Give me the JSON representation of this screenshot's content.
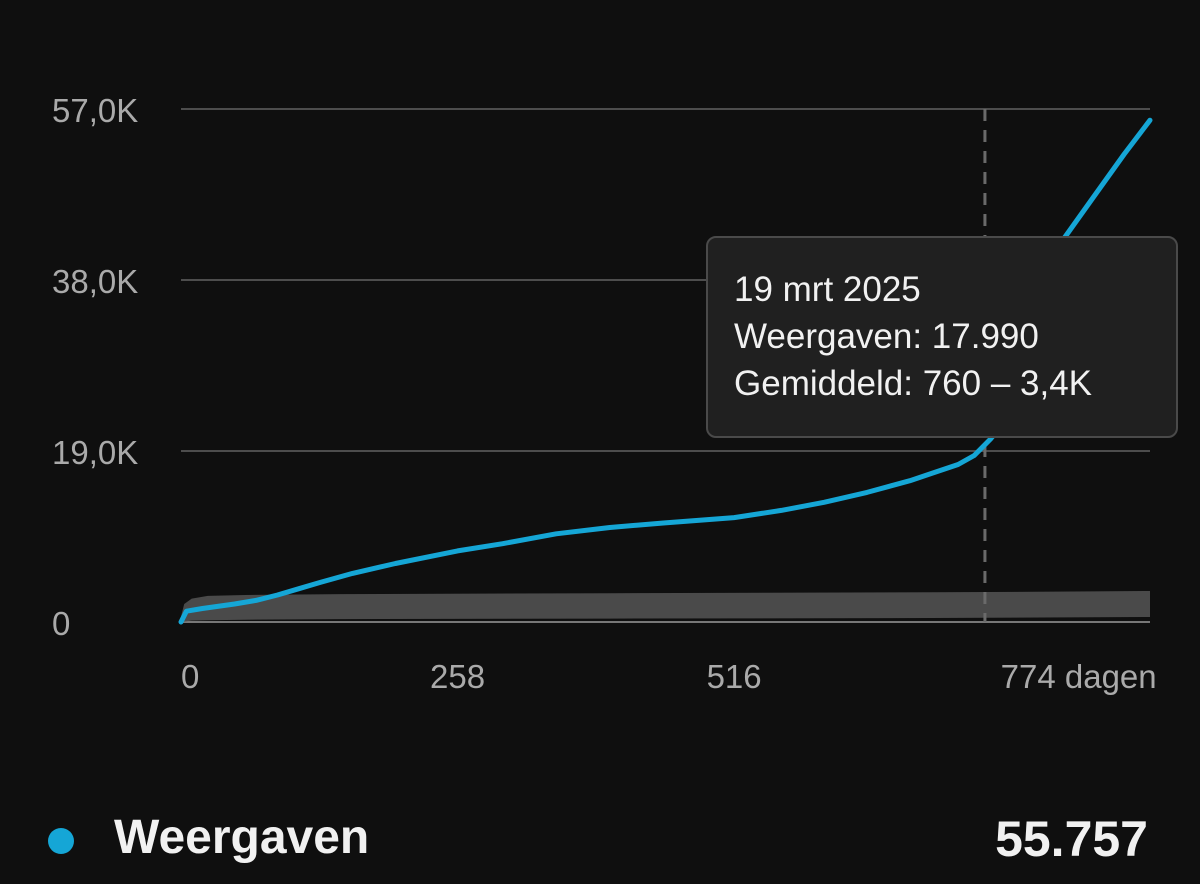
{
  "chart_data": {
    "type": "line",
    "x_unit": "dagen",
    "xlim": [
      0,
      904
    ],
    "ylim": [
      0,
      57000
    ],
    "y_ticks": [
      {
        "value": 0,
        "label": "0"
      },
      {
        "value": 19000,
        "label": "19,0K"
      },
      {
        "value": 38000,
        "label": "38,0K"
      },
      {
        "value": 57000,
        "label": "57,0K"
      }
    ],
    "x_ticks": [
      {
        "value": 0,
        "label": "0"
      },
      {
        "value": 258,
        "label": "258"
      },
      {
        "value": 516,
        "label": "516"
      },
      {
        "value": 774,
        "label": "774 dagen"
      }
    ],
    "grid": true,
    "series": [
      {
        "name": "Weergaven",
        "color": "#15a6d6",
        "x": [
          0,
          5,
          20,
          50,
          70,
          90,
          110,
          130,
          160,
          200,
          258,
          300,
          350,
          400,
          450,
          516,
          560,
          600,
          640,
          680,
          700,
          725,
          740,
          755,
          770,
          775,
          780,
          800,
          820,
          850,
          880,
          904
        ],
        "values": [
          0,
          1200,
          1500,
          2000,
          2400,
          3000,
          3700,
          4400,
          5400,
          6500,
          7900,
          8700,
          9800,
          10500,
          11000,
          11600,
          12400,
          13300,
          14400,
          15700,
          16500,
          17500,
          18500,
          20300,
          22500,
          25000,
          28000,
          34000,
          42000,
          47000,
          52000,
          55757
        ]
      }
    ],
    "average_band": {
      "name": "Gemiddeld",
      "color": "#4a4a4a",
      "x": [
        0,
        3,
        10,
        25,
        60,
        150,
        400,
        700,
        850,
        904
      ],
      "low": [
        0,
        50,
        150,
        200,
        260,
        320,
        380,
        450,
        520,
        560
      ],
      "high": [
        600,
        2000,
        2600,
        2900,
        3000,
        3100,
        3200,
        3300,
        3400,
        3450
      ]
    },
    "highlight_x": 750
  },
  "tooltip": {
    "date": "19 mrt 2025",
    "views": "Weergaven: 17.990",
    "average": "Gemiddeld: 760 – 3,4K"
  },
  "legend": {
    "label": "Weergaven",
    "value": "55.757",
    "dot_color": "#15a6d6"
  }
}
